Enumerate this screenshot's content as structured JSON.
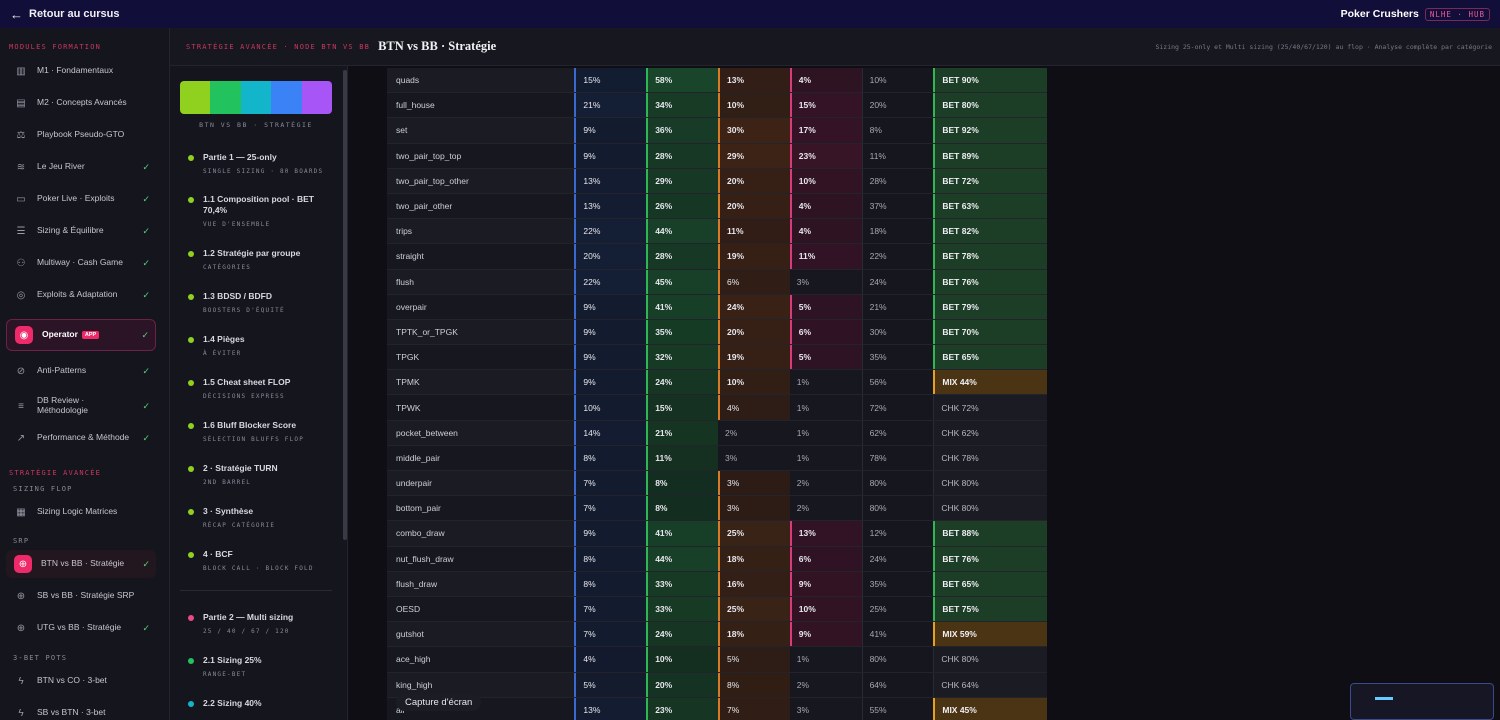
{
  "topbar": {
    "back_label": "Retour au cursus",
    "brand": "Poker Crushers",
    "brand_tag": "NLHE · HUB"
  },
  "sidebar": {
    "section_formation": "MODULES FORMATION",
    "items": [
      {
        "label": "M1 · Fondamentaux",
        "icon": "library-icon",
        "check": ""
      },
      {
        "label": "M2 · Concepts Avancés",
        "icon": "layers-icon",
        "check": ""
      },
      {
        "label": "Playbook Pseudo-GTO",
        "icon": "scale-icon",
        "check": ""
      },
      {
        "label": "Le Jeu River",
        "icon": "waves-icon",
        "check": "✓"
      },
      {
        "label": "Poker Live · Exploits",
        "icon": "tickets-icon",
        "check": "✓"
      },
      {
        "label": "Sizing & Équilibre",
        "icon": "sliders-icon",
        "check": "✓"
      },
      {
        "label": "Multiway · Cash Game",
        "icon": "users-icon",
        "check": "✓"
      },
      {
        "label": "Exploits & Adaptation",
        "icon": "target-icon",
        "check": "✓"
      },
      {
        "label": "Operator",
        "icon": "fingerprint-icon",
        "badge": "APP",
        "check": "✓"
      },
      {
        "label": "Anti-Patterns",
        "icon": "ban-icon",
        "check": "✓"
      },
      {
        "label": "DB Review · Méthodologie",
        "icon": "database-icon",
        "check": "✓"
      },
      {
        "label": "Performance & Méthode",
        "icon": "trend-icon",
        "check": "✓"
      }
    ],
    "section_strategy": "STRATÉGIE AVANCÉE",
    "sub_sizing": "SIZING FLOP",
    "sizing_items": [
      {
        "label": "Sizing Logic Matrices",
        "icon": "grid-icon",
        "check": ""
      }
    ],
    "sub_srp": "SRP",
    "srp_items": [
      {
        "label": "BTN vs BB · Stratégie",
        "icon": "crosshair-icon",
        "check": "✓"
      },
      {
        "label": "SB vs BB · Stratégie SRP",
        "icon": "crosshair-icon",
        "check": ""
      },
      {
        "label": "UTG vs BB · Stratégie",
        "icon": "crosshair-icon",
        "check": "✓"
      }
    ],
    "sub_3bet": "3-BET POTS",
    "threebet_items": [
      {
        "label": "BTN vs CO · 3-bet",
        "icon": "zap-icon",
        "check": ""
      },
      {
        "label": "SB vs BTN · 3-bet",
        "icon": "zap-icon",
        "check": ""
      }
    ]
  },
  "header": {
    "crumb": "STRATÉGIE AVANCÉE · NODE BTN VS BB",
    "title": "BTN vs BB · Stratégie",
    "right": "Sizing 25-only et Multi sizing (25/40/67/120) au flop · Analyse complète par catégorie"
  },
  "toc": {
    "swatch_colors": [
      "#8fd11e",
      "#22c25e",
      "#12b5c9",
      "#3b82f6",
      "#a855f7"
    ],
    "swatch_caption": "BTN VS BB · STRATÉGIE",
    "items": [
      {
        "title": "Partie 1 — 25-only",
        "sub": "SINGLE SIZING · 80 BOARDS",
        "dot": "#8fd11e"
      },
      {
        "title": "1.1 Composition pool · BET 70,4%",
        "sub": "VUE D'ENSEMBLE",
        "dot": "#8fd11e"
      },
      {
        "title": "1.2 Stratégie par groupe",
        "sub": "CATÉGORIES",
        "dot": "#8fd11e"
      },
      {
        "title": "1.3 BDSD / BDFD",
        "sub": "BOOSTERS D'ÉQUITÉ",
        "dot": "#8fd11e"
      },
      {
        "title": "1.4 Pièges",
        "sub": "À ÉVITER",
        "dot": "#8fd11e"
      },
      {
        "title": "1.5 Cheat sheet FLOP",
        "sub": "DÉCISIONS EXPRESS",
        "dot": "#8fd11e"
      },
      {
        "title": "1.6 Bluff Blocker Score",
        "sub": "SÉLECTION BLUFFS FLOP",
        "dot": "#8fd11e"
      },
      {
        "title": "2 · Stratégie TURN",
        "sub": "2ND BARREL",
        "dot": "#8fd11e"
      },
      {
        "title": "3 · Synthèse",
        "sub": "RÉCAP CATÉGORIE",
        "dot": "#8fd11e"
      },
      {
        "title": "4 · BCF",
        "sub": "BLOCK CALL · BLOCK FOLD",
        "dot": "#8fd11e"
      },
      {
        "title": "Partie 2 — Multi sizing",
        "sub": "25 / 40 / 67 / 120",
        "dot": "#e84a8a"
      },
      {
        "title": "2.1 Sizing 25%",
        "sub": "RANGE-BET",
        "dot": "#22c25e"
      },
      {
        "title": "2.2 Sizing 40%",
        "sub": "",
        "dot": "#12b5c9"
      }
    ]
  },
  "table": {
    "rows": [
      {
        "name": "quads",
        "v": [
          "15%",
          "58%",
          "13%",
          "4%",
          "10%"
        ],
        "verdict": "BET 90%"
      },
      {
        "name": "full_house",
        "v": [
          "21%",
          "34%",
          "10%",
          "15%",
          "20%"
        ],
        "verdict": "BET 80%"
      },
      {
        "name": "set",
        "v": [
          "9%",
          "36%",
          "30%",
          "17%",
          "8%"
        ],
        "verdict": "BET 92%"
      },
      {
        "name": "two_pair_top_top",
        "v": [
          "9%",
          "28%",
          "29%",
          "23%",
          "11%"
        ],
        "verdict": "BET 89%"
      },
      {
        "name": "two_pair_top_other",
        "v": [
          "13%",
          "29%",
          "20%",
          "10%",
          "28%"
        ],
        "verdict": "BET 72%"
      },
      {
        "name": "two_pair_other",
        "v": [
          "13%",
          "26%",
          "20%",
          "4%",
          "37%"
        ],
        "verdict": "BET 63%"
      },
      {
        "name": "trips",
        "v": [
          "22%",
          "44%",
          "11%",
          "4%",
          "18%"
        ],
        "verdict": "BET 82%"
      },
      {
        "name": "straight",
        "v": [
          "20%",
          "28%",
          "19%",
          "11%",
          "22%"
        ],
        "verdict": "BET 78%"
      },
      {
        "name": "flush",
        "v": [
          "22%",
          "45%",
          "6%",
          "3%",
          "24%"
        ],
        "verdict": "BET 76%"
      },
      {
        "name": "overpair",
        "v": [
          "9%",
          "41%",
          "24%",
          "5%",
          "21%"
        ],
        "verdict": "BET 79%"
      },
      {
        "name": "TPTK_or_TPGK",
        "v": [
          "9%",
          "35%",
          "20%",
          "6%",
          "30%"
        ],
        "verdict": "BET 70%"
      },
      {
        "name": "TPGK",
        "v": [
          "9%",
          "32%",
          "19%",
          "5%",
          "35%"
        ],
        "verdict": "BET 65%"
      },
      {
        "name": "TPMK",
        "v": [
          "9%",
          "24%",
          "10%",
          "1%",
          "56%"
        ],
        "verdict": "MIX 44%"
      },
      {
        "name": "TPWK",
        "v": [
          "10%",
          "15%",
          "4%",
          "1%",
          "72%"
        ],
        "verdict": "CHK 72%"
      },
      {
        "name": "pocket_between",
        "v": [
          "14%",
          "21%",
          "2%",
          "1%",
          "62%"
        ],
        "verdict": "CHK 62%"
      },
      {
        "name": "middle_pair",
        "v": [
          "8%",
          "11%",
          "3%",
          "1%",
          "78%"
        ],
        "verdict": "CHK 78%"
      },
      {
        "name": "underpair",
        "v": [
          "7%",
          "8%",
          "3%",
          "2%",
          "80%"
        ],
        "verdict": "CHK 80%"
      },
      {
        "name": "bottom_pair",
        "v": [
          "7%",
          "8%",
          "3%",
          "2%",
          "80%"
        ],
        "verdict": "CHK 80%"
      },
      {
        "name": "combo_draw",
        "v": [
          "9%",
          "41%",
          "25%",
          "13%",
          "12%"
        ],
        "verdict": "BET 88%"
      },
      {
        "name": "nut_flush_draw",
        "v": [
          "8%",
          "44%",
          "18%",
          "6%",
          "24%"
        ],
        "verdict": "BET 76%"
      },
      {
        "name": "flush_draw",
        "v": [
          "8%",
          "33%",
          "16%",
          "9%",
          "35%"
        ],
        "verdict": "BET 65%"
      },
      {
        "name": "OESD",
        "v": [
          "7%",
          "33%",
          "25%",
          "10%",
          "25%"
        ],
        "verdict": "BET 75%"
      },
      {
        "name": "gutshot",
        "v": [
          "7%",
          "24%",
          "18%",
          "9%",
          "41%"
        ],
        "verdict": "MIX 59%"
      },
      {
        "name": "ace_high",
        "v": [
          "4%",
          "10%",
          "5%",
          "1%",
          "80%"
        ],
        "verdict": "CHK 80%"
      },
      {
        "name": "king_high",
        "v": [
          "5%",
          "20%",
          "8%",
          "2%",
          "64%"
        ],
        "verdict": "CHK 64%"
      },
      {
        "name": "air",
        "v": [
          "13%",
          "23%",
          "7%",
          "3%",
          "55%"
        ],
        "verdict": "MIX 45%"
      }
    ]
  },
  "capture_label": "Capture d'écran"
}
